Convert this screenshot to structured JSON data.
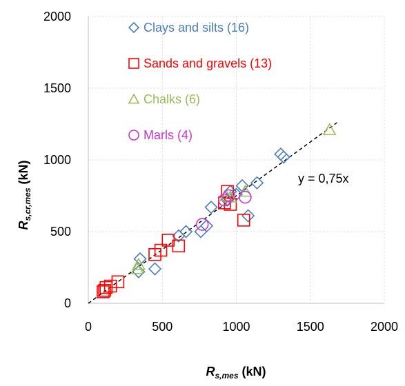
{
  "chart_data": {
    "type": "scatter",
    "xlim": [
      0,
      2000
    ],
    "ylim": [
      0,
      2000
    ],
    "x_ticks": [
      "0",
      "500",
      "1000",
      "1500",
      "2000"
    ],
    "y_ticks": [
      "0",
      "500",
      "1000",
      "1500",
      "2000"
    ],
    "grid": true,
    "xlabel": {
      "main": "R",
      "sub": "s,mes",
      "unit": " (kN)"
    },
    "ylabel": {
      "main": "R",
      "sub": "s,cr,mes",
      "unit": " (kN)"
    },
    "legend_position": "top-left",
    "trendline": {
      "slope": 0.75,
      "x_range": [
        0,
        1680
      ],
      "label": "y = 0,75x",
      "style": "dashed",
      "color": "#000000"
    },
    "series": [
      {
        "name": "Clays and silts (16)",
        "marker": "diamond",
        "color": "#4a7ebb",
        "points": [
          [
            350,
            310
          ],
          [
            340,
            220
          ],
          [
            450,
            240
          ],
          [
            610,
            470
          ],
          [
            660,
            500
          ],
          [
            760,
            500
          ],
          [
            800,
            540
          ],
          [
            830,
            670
          ],
          [
            940,
            720
          ],
          [
            1000,
            760
          ],
          [
            1040,
            820
          ],
          [
            1080,
            610
          ],
          [
            1140,
            840
          ],
          [
            1300,
            1040
          ],
          [
            1320,
            1020
          ],
          [
            960,
            780
          ]
        ]
      },
      {
        "name": "Sands and gravels (13)",
        "marker": "square",
        "color": "#ff0000",
        "points": [
          [
            100,
            80
          ],
          [
            120,
            110
          ],
          [
            150,
            120
          ],
          [
            200,
            150
          ],
          [
            450,
            340
          ],
          [
            490,
            370
          ],
          [
            540,
            440
          ],
          [
            610,
            400
          ],
          [
            920,
            700
          ],
          [
            960,
            690
          ],
          [
            1050,
            580
          ],
          [
            940,
            780
          ],
          [
            110,
            90
          ]
        ]
      },
      {
        "name": "Chalks (6)",
        "marker": "triangle",
        "color": "#9bbb59",
        "points": [
          [
            330,
            240
          ],
          [
            340,
            270
          ],
          [
            930,
            750
          ],
          [
            960,
            740
          ],
          [
            1060,
            780
          ],
          [
            1630,
            1210
          ]
        ]
      },
      {
        "name": "Marls (4)",
        "marker": "circle",
        "color": "#cc33cc",
        "points": [
          [
            770,
            550
          ],
          [
            920,
            720
          ],
          [
            950,
            750
          ],
          [
            1060,
            740
          ]
        ]
      }
    ]
  }
}
